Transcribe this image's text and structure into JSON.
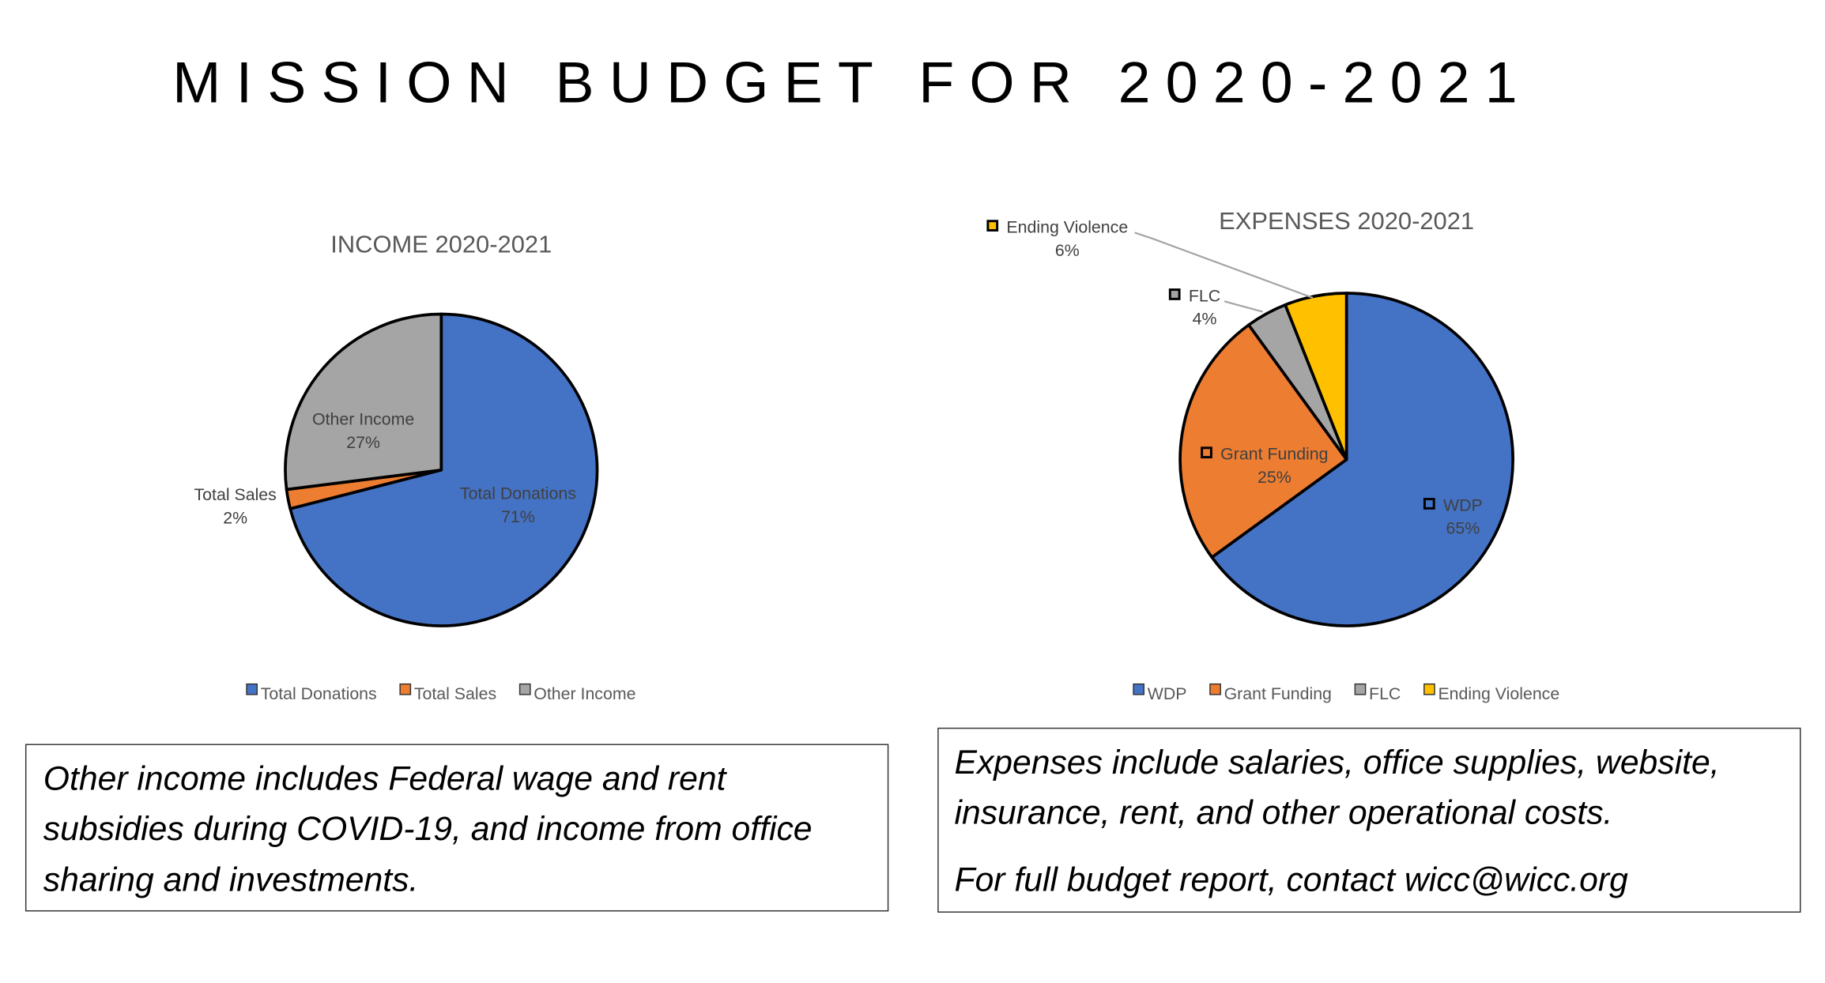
{
  "title": "MISSION BUDGET FOR 2020-2021",
  "chart_data": [
    {
      "type": "pie",
      "title": "INCOME 2020-2021",
      "categories": [
        "Total Donations",
        "Total Sales",
        "Other Income"
      ],
      "values": [
        71,
        2,
        27
      ],
      "value_labels": [
        "71%",
        "2%",
        "27%"
      ],
      "colors": [
        "#4472c4",
        "#ed7d31",
        "#a5a5a5"
      ],
      "legend": "bottom"
    },
    {
      "type": "pie",
      "title": "EXPENSES 2020-2021",
      "categories": [
        "WDP",
        "Grant Funding",
        "FLC",
        "Ending Violence"
      ],
      "values": [
        65,
        25,
        4,
        6
      ],
      "value_labels": [
        "65%",
        "25%",
        "4%",
        "6%"
      ],
      "colors": [
        "#4472c4",
        "#ed7d31",
        "#a5a5a5",
        "#ffc000"
      ],
      "legend": "bottom"
    }
  ],
  "notes": [
    {
      "lines": [
        "Other income includes Federal wage and rent",
        "subsidies during COVID-19, and income from office",
        "sharing and investments."
      ]
    },
    {
      "lines": [
        "Expenses include salaries, office supplies, website,",
        "insurance, rent, and other operational costs.",
        "For full budget report, contact wicc@wicc.org"
      ]
    }
  ]
}
